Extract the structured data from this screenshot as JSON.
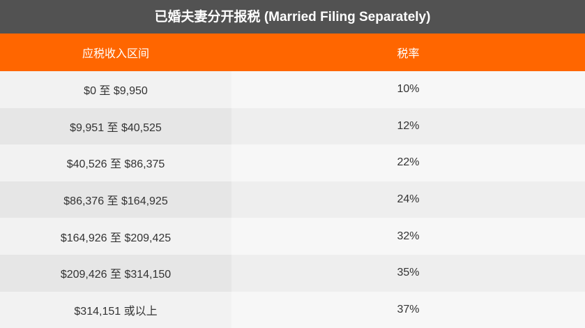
{
  "table": {
    "title": "已婚夫妻分开报税 (Married Filing Separately)",
    "headers": {
      "income_range": "应税收入区间",
      "tax_rate": "税率"
    },
    "rows": [
      {
        "range": "$0 至 $9,950",
        "rate": "10%"
      },
      {
        "range": "$9,951 至 $40,525",
        "rate": "12%"
      },
      {
        "range": "$40,526 至 $86,375",
        "rate": "22%"
      },
      {
        "range": "$86,376 至 $164,925",
        "rate": "24%"
      },
      {
        "range": "$164,926 至 $209,425",
        "rate": "32%"
      },
      {
        "range": "$209,426 至 $314,150",
        "rate": "35%"
      },
      {
        "range": "$314,151 或以上",
        "rate": "37%"
      }
    ],
    "colors": {
      "title_bg": "#525252",
      "header_bg": "#ff6600",
      "row_light": "#f7f7f7",
      "row_dark": "#eeeeee"
    }
  }
}
